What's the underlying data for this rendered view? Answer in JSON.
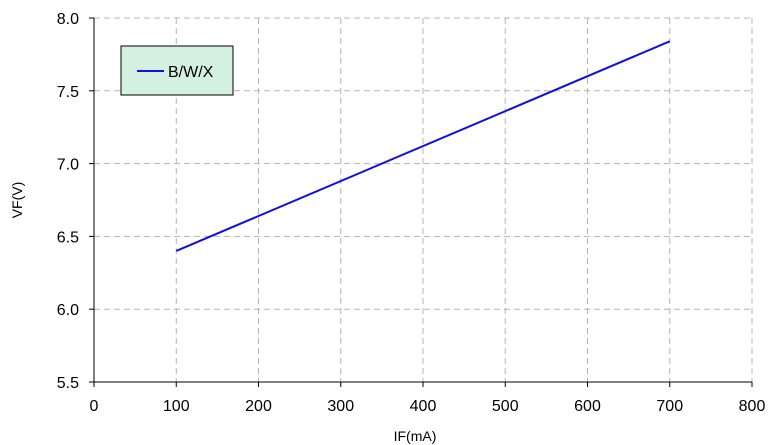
{
  "chart_data": {
    "type": "line",
    "title": "",
    "xlabel": "IF(mA)",
    "ylabel": "VF(V)",
    "xlim": [
      0,
      800
    ],
    "ylim": [
      5.5,
      8.0
    ],
    "x_ticks": [
      0,
      100,
      200,
      300,
      400,
      500,
      600,
      700,
      800
    ],
    "y_ticks": [
      5.5,
      6.0,
      6.5,
      7.0,
      7.5,
      8.0
    ],
    "x_tick_labels": [
      "0",
      "100",
      "200",
      "300",
      "400",
      "500",
      "600",
      "700",
      "800"
    ],
    "y_tick_labels": [
      "5.5",
      "6.0",
      "6.5",
      "7.0",
      "7.5",
      "8.0"
    ],
    "grid": true,
    "legend_position": "top-left",
    "series": [
      {
        "name": "B/W/X",
        "color": "#1010e0",
        "x": [
          100,
          700
        ],
        "y": [
          6.4,
          7.84
        ]
      }
    ],
    "legend_background": "#d4f0e0"
  }
}
